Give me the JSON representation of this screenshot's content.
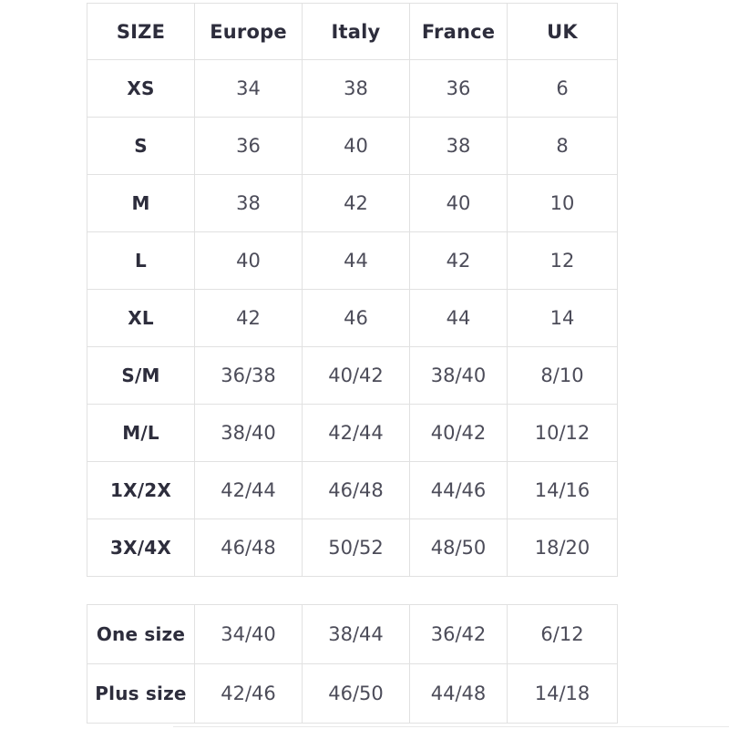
{
  "colors": {
    "background": "#ffffff",
    "border": "#e1e1e1",
    "header_text": "#2d2d3c",
    "value_text": "#4c4c59"
  },
  "main_table": {
    "columns": [
      "SIZE",
      "Europe",
      "Italy",
      "France",
      "UK"
    ],
    "rows": [
      {
        "label": "XS",
        "europe": "34",
        "italy": "38",
        "france": "36",
        "uk": "6"
      },
      {
        "label": "S",
        "europe": "36",
        "italy": "40",
        "france": "38",
        "uk": "8"
      },
      {
        "label": "M",
        "europe": "38",
        "italy": "42",
        "france": "40",
        "uk": "10"
      },
      {
        "label": "L",
        "europe": "40",
        "italy": "44",
        "france": "42",
        "uk": "12"
      },
      {
        "label": "XL",
        "europe": "42",
        "italy": "46",
        "france": "44",
        "uk": "14"
      },
      {
        "label": "S/M",
        "europe": "36/38",
        "italy": "40/42",
        "france": "38/40",
        "uk": "8/10"
      },
      {
        "label": "M/L",
        "europe": "38/40",
        "italy": "42/44",
        "france": "40/42",
        "uk": "10/12"
      },
      {
        "label": "1X/2X",
        "europe": "42/44",
        "italy": "46/48",
        "france": "44/46",
        "uk": "14/16"
      },
      {
        "label": "3X/4X",
        "europe": "46/48",
        "italy": "50/52",
        "france": "48/50",
        "uk": "18/20"
      }
    ]
  },
  "extra_table": {
    "rows": [
      {
        "label": "One size",
        "europe": "34/40",
        "italy": "38/44",
        "france": "36/42",
        "uk": "6/12"
      },
      {
        "label": "Plus size",
        "europe": "42/46",
        "italy": "46/50",
        "france": "44/48",
        "uk": "14/18"
      }
    ]
  }
}
